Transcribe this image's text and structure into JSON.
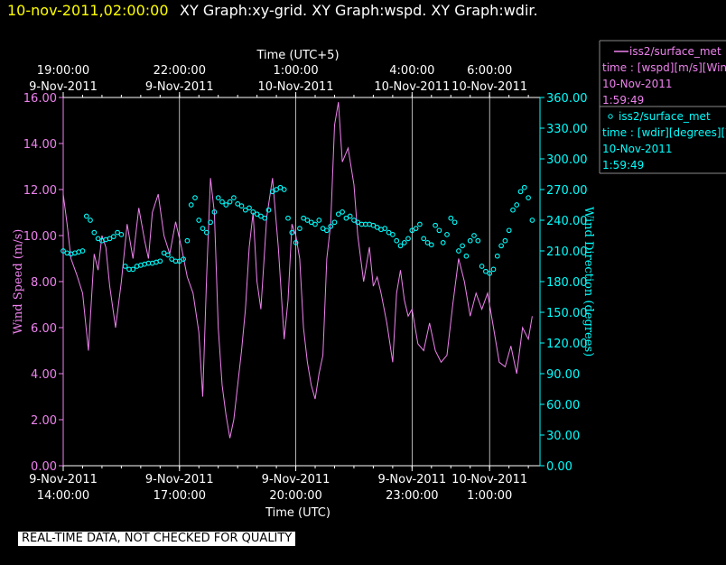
{
  "header": {
    "date": "10-nov-2011,02:00:00",
    "titles": "XY Graph:xy-grid.  XY Graph:wspd.  XY Graph:wdir."
  },
  "colors": {
    "speed": "#ee82ee",
    "direction": "#00ffff",
    "header_date": "#ffff00",
    "background": "#000000",
    "axes": "#ffffff"
  },
  "legend": [
    {
      "marker": "line",
      "name": "iss2/surface_met",
      "var": "time : [wspd][m/s][Wind",
      "date": "10-Nov-2011",
      "time": "1:59:49",
      "color": "#ee82ee"
    },
    {
      "marker": "circle",
      "name": "iss2/surface_met",
      "var": "time : [wdir][degrees][W",
      "date": "10-Nov-2011",
      "time": "1:59:49",
      "color": "#00ffff"
    }
  ],
  "disclaimer": "REAL-TIME DATA, NOT CHECKED FOR QUALITY",
  "chart_data": {
    "type": "line",
    "title": "XY Graph:xy-grid.  XY Graph:wspd.  XY Graph:wdir.",
    "xlabel_bottom": "Time (UTC)",
    "xlabel_top": "Time (UTC+5)",
    "ylabel_left": "Wind Speed (m/s)",
    "ylabel_right": "Wind Direction (degrees)",
    "xlim_hours_utc": [
      14.0,
      26.3
    ],
    "ylim_left": [
      0,
      16
    ],
    "ylim_right": [
      0,
      360
    ],
    "grid": "vertical",
    "x_ticks_bottom": [
      {
        "h": 14,
        "date": "9-Nov-2011",
        "time": "14:00:00"
      },
      {
        "h": 17,
        "date": "9-Nov-2011",
        "time": "17:00:00"
      },
      {
        "h": 20,
        "date": "9-Nov-2011",
        "time": "20:00:00"
      },
      {
        "h": 23,
        "date": "9-Nov-2011",
        "time": "23:00:00"
      },
      {
        "h": 25,
        "date": "10-Nov-2011",
        "time": "1:00:00"
      }
    ],
    "x_ticks_top": [
      {
        "h": 14,
        "time": "19:00:00",
        "date": "9-Nov-2011"
      },
      {
        "h": 17,
        "time": "22:00:00",
        "date": "9-Nov-2011"
      },
      {
        "h": 20,
        "time": "1:00:00",
        "date": "10-Nov-2011"
      },
      {
        "h": 23,
        "time": "4:00:00",
        "date": "10-Nov-2011"
      },
      {
        "h": 25,
        "time": "6:00:00",
        "date": "10-Nov-2011"
      }
    ],
    "y_ticks_left": [
      "0.00",
      "2.00",
      "4.00",
      "6.00",
      "8.00",
      "10.00",
      "12.00",
      "14.00",
      "16.00"
    ],
    "y_ticks_right": [
      "0.00",
      "30.00",
      "60.00",
      "90.00",
      "120.00",
      "150.00",
      "180.00",
      "210.00",
      "240.00",
      "270.00",
      "300.00",
      "330.00",
      "360.00"
    ],
    "series": [
      {
        "name": "iss2/surface_met",
        "axis": "left",
        "style": "line",
        "x": [
          14.0,
          14.1,
          14.2,
          14.35,
          14.5,
          14.65,
          14.8,
          14.9,
          15.0,
          15.1,
          15.2,
          15.35,
          15.5,
          15.65,
          15.8,
          15.95,
          16.1,
          16.2,
          16.3,
          16.45,
          16.6,
          16.75,
          16.9,
          17.05,
          17.2,
          17.35,
          17.5,
          17.6,
          17.7,
          17.8,
          17.9,
          18.0,
          18.1,
          18.2,
          18.3,
          18.4,
          18.5,
          18.6,
          18.7,
          18.8,
          18.9,
          19.0,
          19.1,
          19.25,
          19.4,
          19.55,
          19.7,
          19.8,
          19.9,
          20.0,
          20.1,
          20.2,
          20.3,
          20.4,
          20.5,
          20.6,
          20.7,
          20.8,
          20.9,
          21.0,
          21.1,
          21.2,
          21.35,
          21.5,
          21.6,
          21.75,
          21.9,
          22.0,
          22.1,
          22.2,
          22.35,
          22.5,
          22.6,
          22.7,
          22.8,
          22.9,
          23.0,
          23.15,
          23.3,
          23.45,
          23.6,
          23.75,
          23.9,
          24.05,
          24.2,
          24.35,
          24.5,
          24.65,
          24.8,
          24.95,
          25.1,
          25.25,
          25.4,
          25.55,
          25.7,
          25.85,
          26.0,
          26.1
        ],
        "y": [
          11.8,
          10.5,
          9.0,
          8.3,
          7.5,
          5.0,
          9.2,
          8.5,
          10.0,
          9.5,
          7.8,
          6.0,
          8.0,
          10.5,
          9.0,
          11.2,
          9.8,
          9.0,
          11.0,
          11.8,
          10.0,
          9.2,
          10.6,
          9.5,
          8.2,
          7.5,
          5.8,
          3.0,
          8.2,
          12.5,
          11.0,
          6.0,
          3.5,
          2.2,
          1.2,
          2.0,
          3.5,
          5.0,
          6.8,
          9.5,
          11.0,
          8.0,
          6.8,
          10.8,
          12.5,
          9.5,
          5.5,
          7.2,
          10.5,
          10.0,
          9.0,
          6.0,
          4.5,
          3.5,
          2.9,
          4.0,
          4.8,
          9.0,
          10.5,
          14.8,
          15.8,
          13.2,
          13.8,
          12.2,
          10.0,
          8.0,
          9.5,
          7.8,
          8.2,
          7.5,
          6.2,
          4.5,
          7.5,
          8.5,
          7.2,
          6.5,
          6.8,
          5.3,
          5.0,
          6.2,
          5.0,
          4.5,
          4.8,
          7.0,
          9.0,
          8.0,
          6.5,
          7.5,
          6.8,
          7.5,
          6.0,
          4.5,
          4.3,
          5.2,
          4.0,
          6.0,
          5.5,
          6.5
        ]
      },
      {
        "name": "iss2/surface_met",
        "axis": "right",
        "style": "markers",
        "x": [
          14.0,
          14.1,
          14.2,
          14.3,
          14.4,
          14.5,
          14.6,
          14.7,
          14.8,
          14.9,
          15.0,
          15.1,
          15.2,
          15.3,
          15.4,
          15.5,
          15.6,
          15.7,
          15.8,
          15.9,
          16.0,
          16.1,
          16.2,
          16.3,
          16.4,
          16.5,
          16.6,
          16.7,
          16.8,
          16.9,
          17.0,
          17.1,
          17.2,
          17.3,
          17.4,
          17.5,
          17.6,
          17.7,
          17.8,
          17.9,
          18.0,
          18.1,
          18.2,
          18.3,
          18.4,
          18.5,
          18.6,
          18.7,
          18.8,
          18.9,
          19.0,
          19.1,
          19.2,
          19.3,
          19.4,
          19.5,
          19.6,
          19.7,
          19.8,
          19.9,
          20.0,
          20.1,
          20.2,
          20.3,
          20.4,
          20.5,
          20.6,
          20.7,
          20.8,
          20.9,
          21.0,
          21.1,
          21.2,
          21.3,
          21.4,
          21.5,
          21.6,
          21.7,
          21.8,
          21.9,
          22.0,
          22.1,
          22.2,
          22.3,
          22.4,
          22.5,
          22.6,
          22.7,
          22.8,
          22.9,
          23.0,
          23.1,
          23.2,
          23.3,
          23.4,
          23.5,
          23.6,
          23.7,
          23.8,
          23.9,
          24.0,
          24.1,
          24.2,
          24.3,
          24.4,
          24.5,
          24.6,
          24.7,
          24.8,
          24.9,
          25.0,
          25.1,
          25.2,
          25.3,
          25.4,
          25.5,
          25.6,
          25.7,
          25.8,
          25.9,
          26.0,
          26.1
        ],
        "y": [
          210,
          208,
          207,
          208,
          209,
          210,
          244,
          240,
          228,
          222,
          220,
          221,
          222,
          224,
          228,
          226,
          195,
          192,
          192,
          195,
          196,
          197,
          198,
          198,
          199,
          200,
          208,
          206,
          202,
          200,
          200,
          202,
          220,
          255,
          262,
          240,
          232,
          228,
          238,
          248,
          262,
          258,
          255,
          258,
          262,
          256,
          254,
          250,
          252,
          248,
          246,
          244,
          242,
          250,
          268,
          270,
          272,
          270,
          242,
          228,
          218,
          232,
          242,
          240,
          238,
          236,
          240,
          232,
          230,
          234,
          238,
          246,
          248,
          242,
          244,
          240,
          238,
          236,
          236,
          236,
          235,
          233,
          231,
          232,
          228,
          226,
          220,
          215,
          218,
          222,
          230,
          232,
          236,
          222,
          218,
          216,
          235,
          230,
          218,
          226,
          242,
          238,
          210,
          215,
          205,
          220,
          225,
          220,
          195,
          190,
          188,
          192,
          205,
          215,
          220,
          230,
          250,
          255,
          268,
          272,
          262,
          240
        ]
      }
    ]
  }
}
